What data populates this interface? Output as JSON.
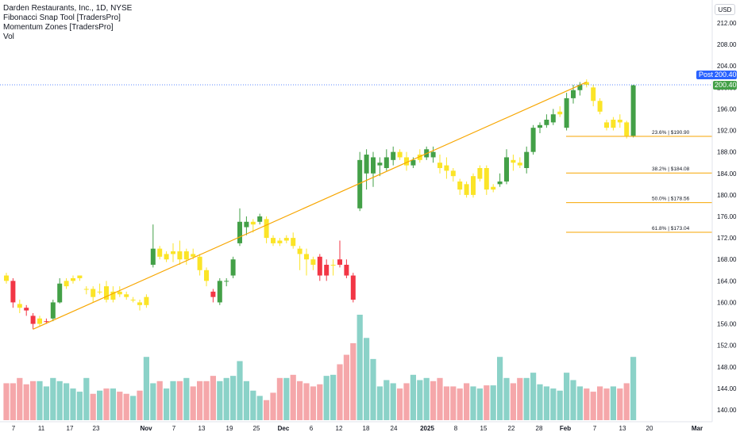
{
  "legend": {
    "title": "Darden Restaurants, Inc., 1D, NYSE",
    "line2": "Fibonacci Snap Tool [TradersPro]",
    "line3": "Momentum Zones [TradersPro]",
    "line4": "Vol"
  },
  "axis": {
    "currency": "USD",
    "price_ticks": [
      "212.00",
      "208.00",
      "204.00",
      "200.00",
      "196.00",
      "192.00",
      "188.00",
      "184.00",
      "180.00",
      "176.00",
      "172.00",
      "168.00",
      "164.00",
      "160.00",
      "156.00",
      "152.00",
      "148.00",
      "144.00",
      "140.00"
    ],
    "date_ticks": [
      "7",
      "11",
      "17",
      "23",
      "Nov",
      "7",
      "13",
      "19",
      "25",
      "Dec",
      "6",
      "12",
      "18",
      "24",
      "2025",
      "8",
      "15",
      "22",
      "28",
      "Feb",
      "7",
      "13",
      "20",
      "Mar"
    ]
  },
  "labels": {
    "post_tag": "Post",
    "post_price": "200.40",
    "last_price": "200.40"
  },
  "colors": {
    "up": "#43a047",
    "down": "#f23645",
    "neutral": "#fbe427",
    "vol_up": "#8bd2c8",
    "vol_down": "#f5a7aa",
    "trendline": "#f7a600",
    "fib": "#f7a600",
    "post_tag": "#2962ff",
    "last_tag": "#43a047"
  },
  "chart_data": {
    "type": "candlestick",
    "title": "Darden Restaurants, Inc., 1D, NYSE",
    "ylim": [
      138,
      214
    ],
    "candles": [
      {
        "o": 165,
        "h": 165.5,
        "l": 163.5,
        "c": 164,
        "t": "n"
      },
      {
        "o": 164,
        "h": 164.5,
        "l": 159,
        "c": 160,
        "t": "d"
      },
      {
        "o": 159.7,
        "h": 160.5,
        "l": 158,
        "c": 159,
        "t": "n"
      },
      {
        "o": 159,
        "h": 159.5,
        "l": 157.5,
        "c": 158.5,
        "t": "d"
      },
      {
        "o": 157.5,
        "h": 158,
        "l": 155,
        "c": 156,
        "t": "d"
      },
      {
        "o": 156,
        "h": 157.5,
        "l": 155.5,
        "c": 157,
        "t": "n"
      },
      {
        "o": 156.5,
        "h": 157,
        "l": 156,
        "c": 156.5,
        "t": "d"
      },
      {
        "o": 157,
        "h": 160.5,
        "l": 156.5,
        "c": 160,
        "t": "u"
      },
      {
        "o": 160,
        "h": 164.5,
        "l": 159.8,
        "c": 163.5,
        "t": "u"
      },
      {
        "o": 163,
        "h": 164.5,
        "l": 162.5,
        "c": 164,
        "t": "n"
      },
      {
        "o": 164,
        "h": 165,
        "l": 163.5,
        "c": 164.5,
        "t": "n"
      },
      {
        "o": 164.5,
        "h": 165,
        "l": 164,
        "c": 165,
        "t": "n"
      },
      {
        "o": 162.5,
        "h": 163,
        "l": 161.5,
        "c": 162.5,
        "t": "n"
      },
      {
        "o": 162.5,
        "h": 163,
        "l": 160,
        "c": 161,
        "t": "n"
      },
      {
        "o": 162,
        "h": 163.5,
        "l": 161.5,
        "c": 162,
        "t": "n"
      },
      {
        "o": 163,
        "h": 164,
        "l": 160,
        "c": 160.5,
        "t": "n"
      },
      {
        "o": 160.5,
        "h": 163,
        "l": 160,
        "c": 162,
        "t": "n"
      },
      {
        "o": 162,
        "h": 163,
        "l": 161,
        "c": 161.5,
        "t": "n"
      },
      {
        "o": 161.5,
        "h": 162,
        "l": 160.5,
        "c": 161,
        "t": "n"
      },
      {
        "o": 160.5,
        "h": 161,
        "l": 160,
        "c": 160.5,
        "t": "n"
      },
      {
        "o": 160,
        "h": 160.5,
        "l": 158.5,
        "c": 159.5,
        "t": "n"
      },
      {
        "o": 159.5,
        "h": 161.5,
        "l": 159,
        "c": 161,
        "t": "n"
      },
      {
        "o": 167,
        "h": 174.5,
        "l": 166.5,
        "c": 170,
        "t": "u"
      },
      {
        "o": 170,
        "h": 170.5,
        "l": 168,
        "c": 168.5,
        "t": "n"
      },
      {
        "o": 168,
        "h": 169.5,
        "l": 167.5,
        "c": 169,
        "t": "n"
      },
      {
        "o": 169,
        "h": 171,
        "l": 167.5,
        "c": 169.5,
        "t": "n"
      },
      {
        "o": 169.5,
        "h": 171.5,
        "l": 167,
        "c": 168,
        "t": "n"
      },
      {
        "o": 168,
        "h": 170,
        "l": 167,
        "c": 169.5,
        "t": "n"
      },
      {
        "o": 169,
        "h": 170,
        "l": 168,
        "c": 168.5,
        "t": "n"
      },
      {
        "o": 168.5,
        "h": 169,
        "l": 165,
        "c": 166,
        "t": "n"
      },
      {
        "o": 166,
        "h": 166.5,
        "l": 163,
        "c": 164,
        "t": "n"
      },
      {
        "o": 162,
        "h": 162.5,
        "l": 160,
        "c": 161,
        "t": "d"
      },
      {
        "o": 160,
        "h": 164.5,
        "l": 159.5,
        "c": 164,
        "t": "u"
      },
      {
        "o": 164,
        "h": 164.5,
        "l": 163,
        "c": 164,
        "t": "u"
      },
      {
        "o": 165,
        "h": 168.5,
        "l": 164.5,
        "c": 168,
        "t": "u"
      },
      {
        "o": 171,
        "h": 177.5,
        "l": 170.5,
        "c": 175,
        "t": "u"
      },
      {
        "o": 174,
        "h": 176,
        "l": 172.5,
        "c": 175,
        "t": "u"
      },
      {
        "o": 174.5,
        "h": 175.5,
        "l": 173,
        "c": 175,
        "t": "n"
      },
      {
        "o": 175,
        "h": 176.5,
        "l": 174.5,
        "c": 176,
        "t": "u"
      },
      {
        "o": 175.5,
        "h": 176,
        "l": 171,
        "c": 172,
        "t": "n"
      },
      {
        "o": 172,
        "h": 172.5,
        "l": 170.5,
        "c": 171,
        "t": "n"
      },
      {
        "o": 171.5,
        "h": 172,
        "l": 170.5,
        "c": 171,
        "t": "n"
      },
      {
        "o": 171.5,
        "h": 172.5,
        "l": 171,
        "c": 172,
        "t": "n"
      },
      {
        "o": 172,
        "h": 173,
        "l": 170,
        "c": 170.5,
        "t": "n"
      },
      {
        "o": 170,
        "h": 170.5,
        "l": 166,
        "c": 169,
        "t": "n"
      },
      {
        "o": 169,
        "h": 170,
        "l": 165,
        "c": 168,
        "t": "n"
      },
      {
        "o": 168,
        "h": 168.5,
        "l": 166,
        "c": 167,
        "t": "n"
      },
      {
        "o": 168.5,
        "h": 169,
        "l": 164,
        "c": 165,
        "t": "d"
      },
      {
        "o": 165,
        "h": 168,
        "l": 164,
        "c": 167,
        "t": "d"
      },
      {
        "o": 167,
        "h": 168,
        "l": 165,
        "c": 167,
        "t": "n"
      },
      {
        "o": 168,
        "h": 171.5,
        "l": 166.5,
        "c": 167,
        "t": "d"
      },
      {
        "o": 167,
        "h": 168,
        "l": 164.5,
        "c": 165,
        "t": "d"
      },
      {
        "o": 165,
        "h": 165.5,
        "l": 160,
        "c": 160.5,
        "t": "d"
      },
      {
        "o": 177.5,
        "h": 188,
        "l": 177,
        "c": 186.5,
        "t": "u"
      },
      {
        "o": 184,
        "h": 188.5,
        "l": 181,
        "c": 187.5,
        "t": "u"
      },
      {
        "o": 184,
        "h": 188,
        "l": 181.5,
        "c": 187,
        "t": "u"
      },
      {
        "o": 185.5,
        "h": 187,
        "l": 183.5,
        "c": 186,
        "t": "u"
      },
      {
        "o": 185,
        "h": 188.5,
        "l": 184.5,
        "c": 187,
        "t": "u"
      },
      {
        "o": 186.5,
        "h": 189,
        "l": 185.5,
        "c": 188,
        "t": "u"
      },
      {
        "o": 188,
        "h": 188.5,
        "l": 186.5,
        "c": 187,
        "t": "n"
      },
      {
        "o": 187,
        "h": 188,
        "l": 184.5,
        "c": 185.5,
        "t": "n"
      },
      {
        "o": 185.5,
        "h": 187,
        "l": 185,
        "c": 186.5,
        "t": "u"
      },
      {
        "o": 186.5,
        "h": 188.5,
        "l": 186,
        "c": 187.5,
        "t": "n"
      },
      {
        "o": 187,
        "h": 189,
        "l": 186.5,
        "c": 188.5,
        "t": "u"
      },
      {
        "o": 188,
        "h": 189,
        "l": 186,
        "c": 187,
        "t": "u"
      },
      {
        "o": 186,
        "h": 187.5,
        "l": 184,
        "c": 185,
        "t": "n"
      },
      {
        "o": 185.5,
        "h": 187,
        "l": 183,
        "c": 184.5,
        "t": "n"
      },
      {
        "o": 184.5,
        "h": 185,
        "l": 182.5,
        "c": 183.5,
        "t": "n"
      },
      {
        "o": 182.5,
        "h": 183,
        "l": 180,
        "c": 181,
        "t": "n"
      },
      {
        "o": 182,
        "h": 182.5,
        "l": 179.5,
        "c": 180,
        "t": "n"
      },
      {
        "o": 180,
        "h": 184,
        "l": 179.5,
        "c": 183.5,
        "t": "n"
      },
      {
        "o": 183,
        "h": 185.5,
        "l": 182.5,
        "c": 185,
        "t": "n"
      },
      {
        "o": 185,
        "h": 185.5,
        "l": 180,
        "c": 181,
        "t": "n"
      },
      {
        "o": 181,
        "h": 182,
        "l": 180.5,
        "c": 181.5,
        "t": "n"
      },
      {
        "o": 182,
        "h": 184,
        "l": 181.5,
        "c": 182.5,
        "t": "u"
      },
      {
        "o": 182.5,
        "h": 188.5,
        "l": 182,
        "c": 187,
        "t": "u"
      },
      {
        "o": 186.5,
        "h": 187.5,
        "l": 184.5,
        "c": 186,
        "t": "n"
      },
      {
        "o": 186,
        "h": 187,
        "l": 185,
        "c": 185.5,
        "t": "n"
      },
      {
        "o": 185,
        "h": 189,
        "l": 184,
        "c": 188,
        "t": "u"
      },
      {
        "o": 188,
        "h": 193,
        "l": 187.5,
        "c": 192.5,
        "t": "u"
      },
      {
        "o": 192.5,
        "h": 193.5,
        "l": 191.5,
        "c": 193,
        "t": "u"
      },
      {
        "o": 193,
        "h": 195,
        "l": 192.5,
        "c": 194,
        "t": "u"
      },
      {
        "o": 193.5,
        "h": 196,
        "l": 193,
        "c": 195,
        "t": "u"
      },
      {
        "o": 195,
        "h": 196.5,
        "l": 194.5,
        "c": 195.5,
        "t": "n"
      },
      {
        "o": 192.5,
        "h": 199,
        "l": 192,
        "c": 198,
        "t": "u"
      },
      {
        "o": 198,
        "h": 200.5,
        "l": 197,
        "c": 199.5,
        "t": "u"
      },
      {
        "o": 199.5,
        "h": 201,
        "l": 198.5,
        "c": 200.5,
        "t": "u"
      },
      {
        "o": 201,
        "h": 201.5,
        "l": 200,
        "c": 200.5,
        "t": "n"
      },
      {
        "o": 200,
        "h": 200.5,
        "l": 196.5,
        "c": 197.5,
        "t": "n"
      },
      {
        "o": 197.5,
        "h": 198,
        "l": 195,
        "c": 195.5,
        "t": "n"
      },
      {
        "o": 193.5,
        "h": 194,
        "l": 192,
        "c": 192.5,
        "t": "n"
      },
      {
        "o": 192.5,
        "h": 194.5,
        "l": 192,
        "c": 194,
        "t": "n"
      },
      {
        "o": 194,
        "h": 195,
        "l": 192.5,
        "c": 193.5,
        "t": "n"
      },
      {
        "o": 193.5,
        "h": 193.8,
        "l": 190.5,
        "c": 191,
        "t": "n"
      },
      {
        "o": 191,
        "h": 200.5,
        "l": 190.7,
        "c": 200.4,
        "t": "u"
      }
    ],
    "volume_heights_relative": [
      0.35,
      0.35,
      0.4,
      0.34,
      0.37,
      0.37,
      0.32,
      0.4,
      0.37,
      0.35,
      0.3,
      0.27,
      0.4,
      0.25,
      0.28,
      0.3,
      0.3,
      0.27,
      0.25,
      0.23,
      0.28,
      0.6,
      0.35,
      0.37,
      0.3,
      0.37,
      0.37,
      0.4,
      0.32,
      0.37,
      0.37,
      0.42,
      0.37,
      0.4,
      0.42,
      0.56,
      0.37,
      0.28,
      0.23,
      0.19,
      0.26,
      0.4,
      0.4,
      0.43,
      0.37,
      0.35,
      0.32,
      0.34,
      0.42,
      0.43,
      0.53,
      0.62,
      0.73,
      1.0,
      0.78,
      0.58,
      0.32,
      0.38,
      0.35,
      0.3,
      0.35,
      0.43,
      0.38,
      0.4,
      0.37,
      0.4,
      0.32,
      0.32,
      0.3,
      0.35,
      0.32,
      0.3,
      0.33,
      0.33,
      0.6,
      0.4,
      0.35,
      0.4,
      0.4,
      0.45,
      0.34,
      0.32,
      0.3,
      0.28,
      0.45,
      0.38,
      0.32,
      0.3,
      0.27,
      0.32,
      0.3,
      0.32,
      0.3,
      0.35,
      0.6
    ],
    "trendline": [
      {
        "i": 4,
        "p": 155.0
      },
      {
        "i": 87,
        "p": 201.0
      }
    ],
    "fib_levels": [
      {
        "label": "23.6% | $190.90",
        "p": 190.9
      },
      {
        "label": "38.2% | $184.08",
        "p": 184.08
      },
      {
        "label": "50.0% | $178.56",
        "p": 178.56
      },
      {
        "label": "61.8% | $173.04",
        "p": 173.04
      }
    ],
    "last_price": 200.4
  }
}
